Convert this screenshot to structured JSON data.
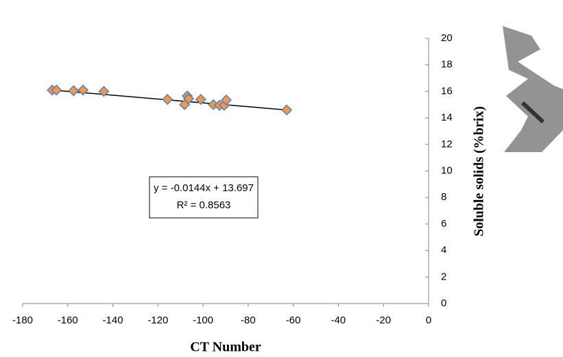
{
  "chart_data": {
    "type": "scatter",
    "x_label": "CT Number",
    "y_label": "Soluble solids (%brix)",
    "x": [
      -166.9,
      -165,
      -157.4,
      -153.2,
      -144,
      -115.8,
      -108.2,
      -107,
      -106.4,
      -101,
      -95.4,
      -92.7,
      -90.6,
      -89.7,
      -62.9
    ],
    "series": [
      {
        "color": "#f79646",
        "edge": "#4f81bd",
        "values": [
          16.1,
          16.1,
          16.05,
          16.1,
          16.0,
          15.4,
          15.0,
          15.65,
          15.45,
          15.4,
          15.0,
          14.95,
          14.95,
          15.35,
          14.6
        ]
      }
    ],
    "trendline": {
      "x": [
        -166.9,
        -62.9
      ],
      "y": [
        16.1,
        14.6
      ],
      "color": "#000000"
    },
    "annotation": [
      "y = -0.0144x + 13.697",
      "R² = 0.8563"
    ],
    "xlim": [
      -180,
      0
    ],
    "xticks": [
      -180,
      -160,
      -140,
      -120,
      -100,
      -80,
      -60,
      -40,
      -20,
      0
    ],
    "ylim": [
      0,
      20
    ],
    "yticks": [
      0,
      2,
      4,
      6,
      8,
      10,
      12,
      14,
      16,
      18,
      20
    ]
  }
}
